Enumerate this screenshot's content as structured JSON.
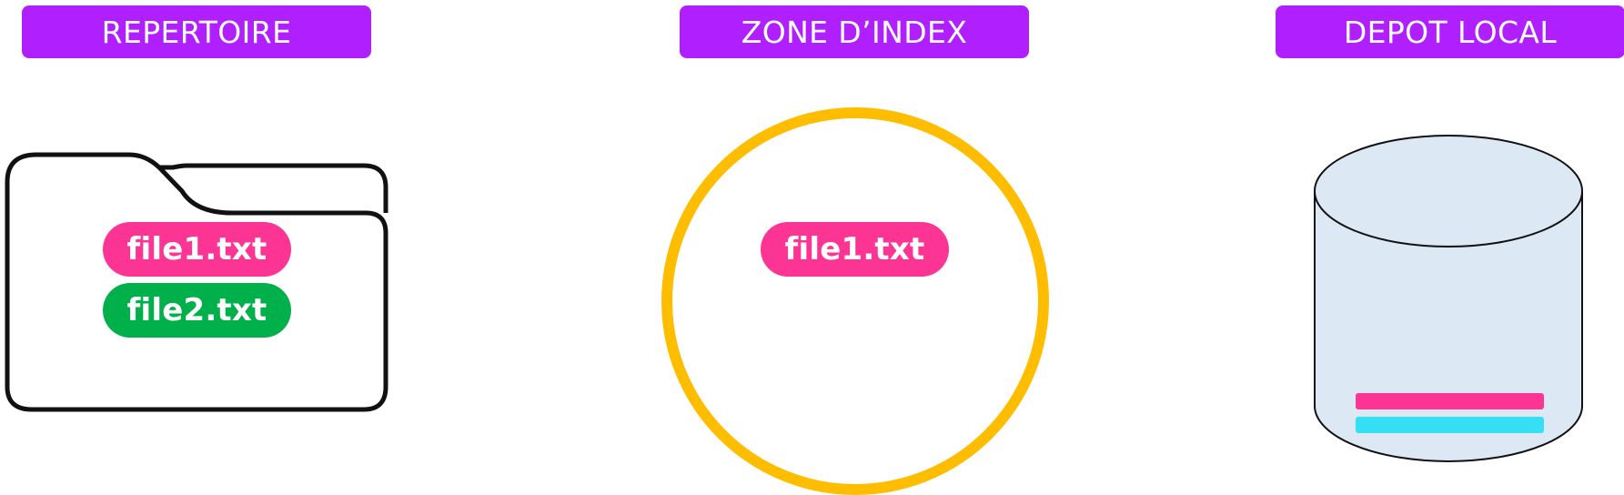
{
  "labels": {
    "repertoire": "REPERTOIRE",
    "zone_index": "ZONE D’INDEX",
    "depot_local": "DEPOT LOCAL"
  },
  "repertoire_files": [
    {
      "name": "file1.txt",
      "color": "#fc3494"
    },
    {
      "name": "file2.txt",
      "color": "#00b04a"
    }
  ],
  "index_files": [
    {
      "name": "file1.txt",
      "color": "#fc3494"
    }
  ],
  "depot_commits": [
    {
      "color": "#fc3494"
    },
    {
      "color": "#35e0f4"
    }
  ],
  "colors": {
    "label_bg": "#b020ff",
    "label_text": "#ffffff",
    "folder_stroke": "#111111",
    "index_circle": "#ffbd00",
    "db_fill": "#dde8f5",
    "db_stroke": "#111111"
  },
  "icons": {
    "folder": "folder-icon",
    "index": "circle-zone",
    "database": "database-icon"
  }
}
